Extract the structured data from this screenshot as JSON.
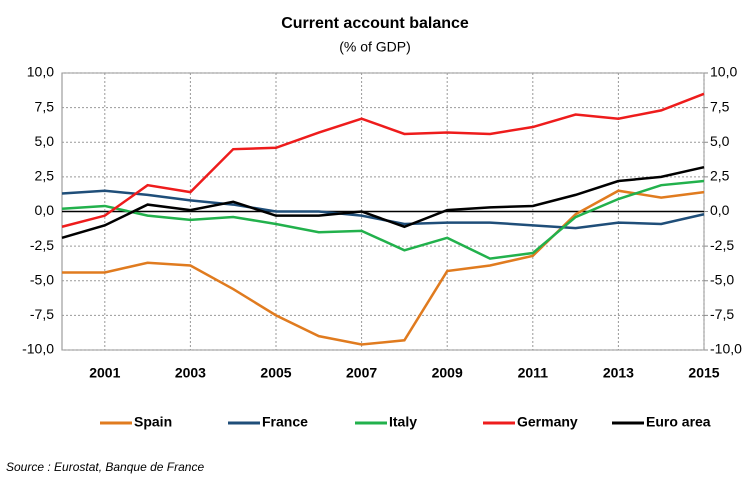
{
  "chart_data": {
    "type": "line",
    "title": "Current account balance",
    "subtitle": "(% of GDP)",
    "source": "Source : Eurostat, Banque de France",
    "x": [
      2000,
      2001,
      2002,
      2003,
      2004,
      2005,
      2006,
      2007,
      2008,
      2009,
      2010,
      2011,
      2012,
      2013,
      2014,
      2015
    ],
    "xlim": [
      2000,
      2015
    ],
    "xticks": [
      2001,
      2003,
      2005,
      2007,
      2009,
      2011,
      2013,
      2015
    ],
    "ylim": [
      -10,
      10
    ],
    "yticks": [
      {
        "value": -10,
        "label": "-10,0"
      },
      {
        "value": -7.5,
        "label": "-7,5"
      },
      {
        "value": -5,
        "label": "-5,0"
      },
      {
        "value": -2.5,
        "label": "-2,5"
      },
      {
        "value": 0,
        "label": "0,0"
      },
      {
        "value": 2.5,
        "label": "2,5"
      },
      {
        "value": 5,
        "label": "5,0"
      },
      {
        "value": 7.5,
        "label": "7,5"
      },
      {
        "value": 10,
        "label": "10,0"
      }
    ],
    "y2lim": [
      -10,
      10
    ],
    "y2ticks": [
      {
        "value": -10,
        "label": "-10,0"
      },
      {
        "value": -7.5,
        "label": "-7,5"
      },
      {
        "value": -5,
        "label": "-5,0"
      },
      {
        "value": -2.5,
        "label": "-2,5"
      },
      {
        "value": 0,
        "label": "0,0"
      },
      {
        "value": 2.5,
        "label": "2,5"
      },
      {
        "value": 5,
        "label": "5,0"
      },
      {
        "value": 7.5,
        "label": "7,5"
      },
      {
        "value": 10,
        "label": "10,0"
      }
    ],
    "grid": true,
    "legend": "bottom",
    "series": [
      {
        "name": "Spain",
        "color": "#e07b1f",
        "values": [
          -4.4,
          -4.4,
          -3.7,
          -3.9,
          -5.6,
          -7.5,
          -9.0,
          -9.6,
          -9.3,
          -4.3,
          -3.9,
          -3.2,
          -0.2,
          1.5,
          1.0,
          1.4
        ]
      },
      {
        "name": "France",
        "color": "#1f4e79",
        "values": [
          1.3,
          1.5,
          1.2,
          0.8,
          0.5,
          0.0,
          0.0,
          -0.3,
          -0.9,
          -0.8,
          -0.8,
          -1.0,
          -1.2,
          -0.8,
          -0.9,
          -0.2
        ]
      },
      {
        "name": "Italy",
        "color": "#22b14c",
        "values": [
          0.2,
          0.4,
          -0.3,
          -0.6,
          -0.4,
          -0.9,
          -1.5,
          -1.4,
          -2.8,
          -1.9,
          -3.4,
          -3.0,
          -0.4,
          0.9,
          1.9,
          2.2
        ]
      },
      {
        "name": "Germany",
        "color": "#ee1c1c",
        "values": [
          -1.1,
          -0.3,
          1.9,
          1.4,
          4.5,
          4.6,
          5.7,
          6.7,
          5.6,
          5.7,
          5.6,
          6.1,
          7.0,
          6.7,
          7.3,
          8.5
        ]
      },
      {
        "name": "Euro area",
        "color": "#000000",
        "values": [
          -1.9,
          -1.0,
          0.5,
          0.1,
          0.7,
          -0.3,
          -0.3,
          0.0,
          -1.1,
          0.1,
          0.3,
          0.4,
          1.2,
          2.2,
          2.5,
          3.2
        ]
      }
    ]
  }
}
